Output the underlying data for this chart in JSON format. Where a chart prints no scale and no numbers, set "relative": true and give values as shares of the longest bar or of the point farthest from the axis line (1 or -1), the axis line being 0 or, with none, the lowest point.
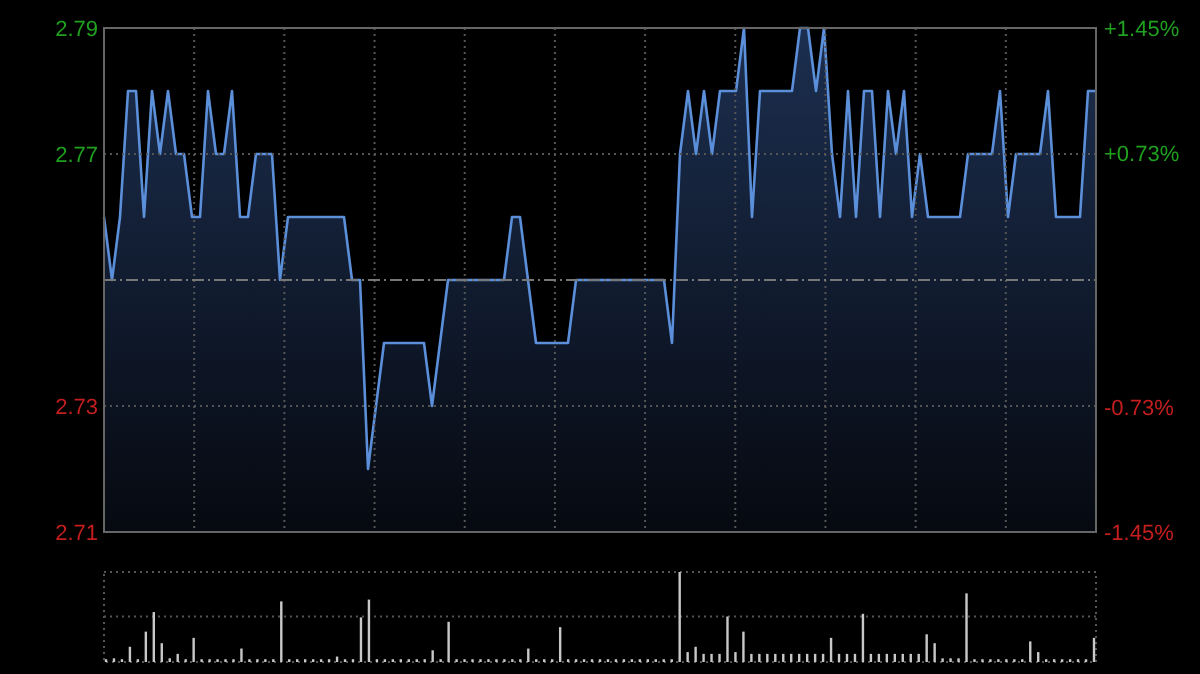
{
  "chart_data": [
    {
      "type": "area",
      "categories": [
        null,
        null,
        null,
        null,
        null,
        null,
        null,
        null,
        null,
        null,
        null,
        null,
        null,
        null,
        null,
        null,
        null,
        null,
        null,
        null,
        null,
        null,
        null,
        null,
        null,
        null,
        null,
        null,
        null,
        null,
        null,
        null,
        null,
        null,
        null,
        null,
        null,
        null,
        null,
        null,
        null,
        null,
        null,
        null,
        null,
        null,
        null,
        null,
        null,
        null,
        null,
        null,
        null,
        null,
        null,
        null,
        null,
        null,
        null,
        null,
        null,
        null,
        null,
        null,
        null,
        null,
        null,
        null,
        null,
        null,
        null,
        null,
        null,
        null,
        null,
        null,
        null,
        null,
        null,
        null,
        null,
        null,
        null,
        null,
        null,
        null,
        null,
        null,
        null,
        null,
        null,
        null,
        null,
        null,
        null,
        null,
        null,
        null,
        null,
        null,
        null,
        null,
        null,
        null,
        null,
        null,
        null,
        null,
        null,
        null,
        null,
        null,
        null,
        null,
        null,
        null,
        null,
        null,
        null,
        null,
        null,
        null,
        null,
        null,
        null
      ],
      "series": [
        {
          "color": "#5b8fd9",
          "values": [
            2.76,
            2.75,
            2.76,
            2.78,
            2.78,
            2.76,
            2.78,
            2.77,
            2.78,
            2.77,
            2.77,
            2.76,
            2.76,
            2.78,
            2.77,
            2.77,
            2.78,
            2.76,
            2.76,
            2.77,
            2.77,
            2.77,
            2.75,
            2.76,
            2.76,
            2.76,
            2.76,
            2.76,
            2.76,
            2.76,
            2.76,
            2.75,
            2.75,
            2.72,
            2.73,
            2.74,
            2.74,
            2.74,
            2.74,
            2.74,
            2.74,
            2.73,
            2.74,
            2.75,
            2.75,
            2.75,
            2.75,
            2.75,
            2.75,
            2.75,
            2.75,
            2.76,
            2.76,
            2.75,
            2.74,
            2.74,
            2.74,
            2.74,
            2.74,
            2.75,
            2.75,
            2.75,
            2.75,
            2.75,
            2.75,
            2.75,
            2.75,
            2.75,
            2.75,
            2.75,
            2.75,
            2.74,
            2.77,
            2.78,
            2.77,
            2.78,
            2.77,
            2.78,
            2.78,
            2.78,
            2.79,
            2.76,
            2.78,
            2.78,
            2.78,
            2.78,
            2.78,
            2.79,
            2.79,
            2.78,
            2.79,
            2.77,
            2.76,
            2.78,
            2.76,
            2.78,
            2.78,
            2.76,
            2.78,
            2.77,
            2.78,
            2.76,
            2.77,
            2.76,
            2.76,
            2.76,
            2.76,
            2.76,
            2.77,
            2.77,
            2.77,
            2.77,
            2.78,
            2.76,
            2.77,
            2.77,
            2.77,
            2.77,
            2.78,
            2.76,
            2.76,
            2.76,
            2.76,
            2.78,
            2.78
          ]
        }
      ],
      "ylim": [
        2.71,
        2.79
      ],
      "yticks": [
        2.71,
        2.73,
        2.77,
        2.79
      ],
      "y2lim": [
        -1.45,
        1.45
      ],
      "y2ticks": [
        {
          "value": 1.45,
          "label": "+1.45%"
        },
        {
          "value": 0.73,
          "label": "+0.73%"
        },
        {
          "value": -0.73,
          "label": "-0.73%"
        },
        {
          "value": -1.45,
          "label": "-1.45%"
        }
      ],
      "ref_lines": [
        {
          "axis": "y",
          "value": 2.75
        }
      ],
      "grid": true
    },
    {
      "type": "bar",
      "relative": true,
      "grid": true,
      "ref_lines": [
        {
          "axis": "y",
          "value": 0.5,
          "color": "#555555",
          "line_style": "dotted"
        }
      ],
      "categories": [
        null,
        null,
        null,
        null,
        null,
        null,
        null,
        null,
        null,
        null,
        null,
        null,
        null,
        null,
        null,
        null,
        null,
        null,
        null,
        null,
        null,
        null,
        null,
        null,
        null,
        null,
        null,
        null,
        null,
        null,
        null,
        null,
        null,
        null,
        null,
        null,
        null,
        null,
        null,
        null,
        null,
        null,
        null,
        null,
        null,
        null,
        null,
        null,
        null,
        null,
        null,
        null,
        null,
        null,
        null,
        null,
        null,
        null,
        null,
        null,
        null,
        null,
        null,
        null,
        null,
        null,
        null,
        null,
        null,
        null,
        null,
        null,
        null,
        null,
        null,
        null,
        null,
        null,
        null,
        null,
        null,
        null,
        null,
        null,
        null,
        null,
        null,
        null,
        null,
        null,
        null,
        null,
        null,
        null,
        null,
        null,
        null,
        null,
        null,
        null,
        null,
        null,
        null,
        null,
        null,
        null,
        null,
        null,
        null,
        null,
        null,
        null,
        null,
        null,
        null,
        null,
        null,
        null,
        null,
        null,
        null,
        null,
        null,
        null,
        null
      ],
      "series": [
        {
          "color": "#c8c8c8",
          "values": [
            0.02,
            0.03,
            0.02,
            0.16,
            0.02,
            0.33,
            0.55,
            0.2,
            0.03,
            0.08,
            0.02,
            0.26,
            0.02,
            0.02,
            0.02,
            0.02,
            0.02,
            0.14,
            0.02,
            0.02,
            0.02,
            0.02,
            0.67,
            0.02,
            0.02,
            0.02,
            0.02,
            0.02,
            0.02,
            0.05,
            0.02,
            0.02,
            0.49,
            0.69,
            0.02,
            0.02,
            0.02,
            0.02,
            0.02,
            0.02,
            0.02,
            0.12,
            0.02,
            0.44,
            0.02,
            0.02,
            0.02,
            0.02,
            0.02,
            0.02,
            0.02,
            0.02,
            0.02,
            0.14,
            0.02,
            0.02,
            0.02,
            0.38,
            0.02,
            0.02,
            0.02,
            0.02,
            0.02,
            0.02,
            0.02,
            0.02,
            0.02,
            0.02,
            0.02,
            0.02,
            0.02,
            0.02,
            1,
            0.1,
            0.16,
            0.08,
            0.08,
            0.08,
            0.5,
            0.1,
            0.33,
            0.08,
            0.08,
            0.08,
            0.08,
            0.08,
            0.08,
            0.08,
            0.08,
            0.08,
            0.08,
            0.26,
            0.08,
            0.08,
            0.08,
            0.53,
            0.08,
            0.08,
            0.08,
            0.08,
            0.08,
            0.08,
            0.08,
            0.3,
            0.2,
            0.03,
            0.03,
            0.03,
            0.76,
            0.02,
            0.02,
            0.02,
            0.02,
            0.02,
            0.02,
            0.02,
            0.22,
            0.1,
            0.02,
            0.02,
            0.02,
            0.02,
            0.02,
            0.02,
            0.26
          ]
        }
      ]
    }
  ]
}
